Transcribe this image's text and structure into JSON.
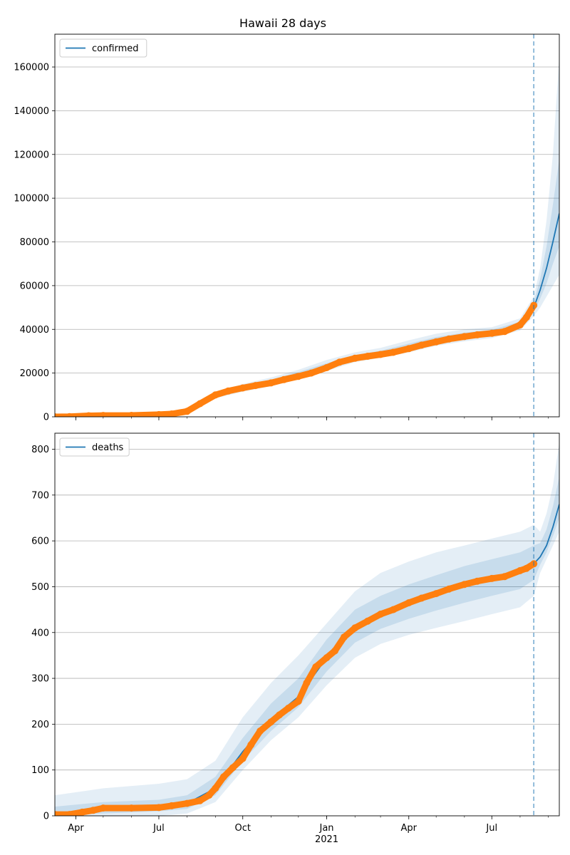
{
  "chart_data": [
    {
      "type": "line",
      "title": "Hawaii 28 days",
      "xlabel": "",
      "ylabel": "",
      "xlim": [
        "2020-03-09",
        "2021-09-13"
      ],
      "ylim": [
        0,
        175000
      ],
      "yticks": [
        0,
        20000,
        40000,
        60000,
        80000,
        100000,
        120000,
        140000,
        160000
      ],
      "grid": "y",
      "legend": {
        "position": "top-left",
        "entries": [
          "confirmed"
        ]
      },
      "forecast_start": "2021-08-16",
      "series": [
        {
          "name": "confirmed",
          "role": "model fit and forecast",
          "color": "#1f77b4",
          "x": [
            "2020-03-09",
            "2020-07-01",
            "2020-08-01",
            "2020-09-01",
            "2020-10-01",
            "2020-11-01",
            "2020-12-01",
            "2021-01-01",
            "2021-02-01",
            "2021-03-01",
            "2021-04-01",
            "2021-05-01",
            "2021-06-01",
            "2021-07-01",
            "2021-08-01",
            "2021-08-16",
            "2021-08-23",
            "2021-08-30",
            "2021-09-06",
            "2021-09-13"
          ],
          "y": [
            0,
            1000,
            2500,
            10000,
            13000,
            16000,
            19500,
            23000,
            27000,
            29000,
            32000,
            35000,
            37000,
            38500,
            42000,
            50000,
            58000,
            68000,
            80000,
            93000
          ],
          "bands": [
            {
              "x": [
                "2020-03-09",
                "2020-07-01",
                "2020-08-01",
                "2020-09-01",
                "2020-10-01",
                "2020-11-01",
                "2020-12-01",
                "2021-01-01",
                "2021-02-01",
                "2021-03-01",
                "2021-04-01",
                "2021-05-01",
                "2021-06-01",
                "2021-07-01",
                "2021-08-01",
                "2021-08-16",
                "2021-08-23",
                "2021-08-30",
                "2021-09-06",
                "2021-09-13"
              ],
              "lower": [
                0,
                800,
                2000,
                8500,
                11500,
                14000,
                17500,
                21000,
                25000,
                27000,
                29500,
                32500,
                34500,
                36000,
                39500,
                46000,
                50000,
                55000,
                60000,
                65000
              ],
              "upper": [
                1000,
                1200,
                3000,
                11500,
                15000,
                18000,
                21500,
                26000,
                29500,
                31500,
                35000,
                38000,
                40000,
                41000,
                45000,
                55000,
                68000,
                90000,
                120000,
                165000
              ]
            },
            {
              "x": [
                "2020-03-09",
                "2020-07-01",
                "2020-08-01",
                "2020-09-01",
                "2020-10-01",
                "2020-11-01",
                "2020-12-01",
                "2021-01-01",
                "2021-02-01",
                "2021-03-01",
                "2021-04-01",
                "2021-05-01",
                "2021-06-01",
                "2021-07-01",
                "2021-08-01",
                "2021-08-16",
                "2021-08-23",
                "2021-08-30",
                "2021-09-06",
                "2021-09-13"
              ],
              "lower": [
                0,
                900,
                2200,
                9200,
                12200,
                15000,
                18500,
                22000,
                26000,
                28000,
                30800,
                33800,
                35800,
                37300,
                40800,
                48000,
                54000,
                61000,
                70000,
                78000
              ],
              "upper": [
                500,
                1100,
                2800,
                10800,
                14000,
                17000,
                20500,
                24500,
                28200,
                30200,
                33500,
                36500,
                38500,
                39800,
                43500,
                52500,
                63000,
                78000,
                97000,
                118000
              ]
            }
          ]
        },
        {
          "name": "observed",
          "role": "observed data points",
          "color": "#ff7f0e",
          "x": [
            "2020-03-09",
            "2020-03-25",
            "2020-04-15",
            "2020-05-01",
            "2020-06-01",
            "2020-07-01",
            "2020-07-15",
            "2020-08-01",
            "2020-08-15",
            "2020-09-01",
            "2020-09-15",
            "2020-10-01",
            "2020-10-15",
            "2020-11-01",
            "2020-11-15",
            "2020-12-01",
            "2020-12-15",
            "2021-01-01",
            "2021-01-15",
            "2021-02-01",
            "2021-02-15",
            "2021-03-01",
            "2021-03-15",
            "2021-04-01",
            "2021-04-15",
            "2021-05-01",
            "2021-05-15",
            "2021-06-01",
            "2021-06-15",
            "2021-07-01",
            "2021-07-15",
            "2021-08-01",
            "2021-08-08",
            "2021-08-16"
          ],
          "y": [
            0,
            100,
            500,
            620,
            650,
            1000,
            1300,
            2500,
            6000,
            10000,
            11800,
            13200,
            14300,
            15500,
            17000,
            18500,
            20000,
            22500,
            25000,
            26800,
            27700,
            28500,
            29500,
            31200,
            32800,
            34300,
            35600,
            36700,
            37500,
            38200,
            39000,
            42000,
            45500,
            51000
          ]
        }
      ]
    },
    {
      "type": "line",
      "title": "",
      "xlabel": "",
      "ylabel": "",
      "xlim": [
        "2020-03-09",
        "2021-09-13"
      ],
      "ylim": [
        0,
        835
      ],
      "yticks": [
        0,
        100,
        200,
        300,
        400,
        500,
        600,
        700,
        800
      ],
      "xticks": [
        {
          "date": "2020-04-01",
          "label": "Apr"
        },
        {
          "date": "2020-07-01",
          "label": "Jul"
        },
        {
          "date": "2020-10-01",
          "label": "Oct"
        },
        {
          "date": "2021-01-01",
          "label": "Jan",
          "sublabel": "2021"
        },
        {
          "date": "2021-04-01",
          "label": "Apr"
        },
        {
          "date": "2021-07-01",
          "label": "Jul"
        }
      ],
      "grid": "y",
      "legend": {
        "position": "top-left",
        "entries": [
          "deaths"
        ]
      },
      "forecast_start": "2021-08-16",
      "series": [
        {
          "name": "deaths",
          "role": "model fit and forecast",
          "color": "#1f77b4",
          "x": [
            "2020-03-09",
            "2020-05-01",
            "2020-07-01",
            "2020-08-01",
            "2020-09-01",
            "2020-10-01",
            "2020-11-01",
            "2020-12-01",
            "2021-01-01",
            "2021-02-01",
            "2021-03-01",
            "2021-04-01",
            "2021-05-01",
            "2021-06-01",
            "2021-07-01",
            "2021-08-01",
            "2021-08-16",
            "2021-08-23",
            "2021-08-30",
            "2021-09-06",
            "2021-09-13"
          ],
          "y": [
            3,
            15,
            20,
            27,
            60,
            140,
            210,
            260,
            345,
            410,
            440,
            465,
            485,
            505,
            520,
            535,
            550,
            565,
            590,
            630,
            680
          ],
          "bands": [
            {
              "x": [
                "2020-03-09",
                "2020-05-01",
                "2020-07-01",
                "2020-08-01",
                "2020-09-01",
                "2020-10-01",
                "2020-11-01",
                "2020-12-01",
                "2021-01-01",
                "2021-02-01",
                "2021-03-01",
                "2021-04-01",
                "2021-05-01",
                "2021-06-01",
                "2021-07-01",
                "2021-08-01",
                "2021-08-16",
                "2021-08-23",
                "2021-08-30",
                "2021-09-06",
                "2021-09-13"
              ],
              "lower": [
                0,
                0,
                0,
                5,
                30,
                100,
                165,
                215,
                285,
                345,
                375,
                395,
                410,
                425,
                440,
                455,
                480,
                530,
                560,
                590,
                620
              ],
              "upper": [
                45,
                60,
                70,
                80,
                120,
                215,
                290,
                350,
                420,
                490,
                530,
                555,
                575,
                590,
                605,
                620,
                635,
                620,
                660,
                720,
                815
              ]
            },
            {
              "x": [
                "2020-03-09",
                "2020-05-01",
                "2020-07-01",
                "2020-08-01",
                "2020-09-01",
                "2020-10-01",
                "2020-11-01",
                "2020-12-01",
                "2021-01-01",
                "2021-02-01",
                "2021-03-01",
                "2021-04-01",
                "2021-05-01",
                "2021-06-01",
                "2021-07-01",
                "2021-08-01",
                "2021-08-16",
                "2021-08-23",
                "2021-08-30",
                "2021-09-06",
                "2021-09-13"
              ],
              "lower": [
                0,
                5,
                10,
                15,
                45,
                120,
                185,
                237,
                315,
                378,
                408,
                430,
                448,
                465,
                480,
                495,
                515,
                548,
                575,
                610,
                650
              ],
              "upper": [
                20,
                30,
                35,
                45,
                85,
                170,
                245,
                300,
                385,
                450,
                480,
                505,
                525,
                545,
                560,
                575,
                590,
                595,
                625,
                675,
                740
              ]
            }
          ]
        },
        {
          "name": "observed",
          "role": "observed data points",
          "color": "#ff7f0e",
          "x": [
            "2020-03-09",
            "2020-03-25",
            "2020-04-08",
            "2020-04-20",
            "2020-05-01",
            "2020-06-01",
            "2020-07-01",
            "2020-07-15",
            "2020-08-01",
            "2020-08-15",
            "2020-08-25",
            "2020-09-01",
            "2020-09-10",
            "2020-09-20",
            "2020-10-01",
            "2020-10-10",
            "2020-10-20",
            "2020-11-01",
            "2020-11-10",
            "2020-11-20",
            "2020-12-01",
            "2020-12-10",
            "2020-12-20",
            "2021-01-01",
            "2021-01-10",
            "2021-01-20",
            "2021-02-01",
            "2021-02-15",
            "2021-03-01",
            "2021-03-15",
            "2021-04-01",
            "2021-04-15",
            "2021-05-01",
            "2021-05-15",
            "2021-06-01",
            "2021-06-15",
            "2021-07-01",
            "2021-07-15",
            "2021-08-01",
            "2021-08-08",
            "2021-08-16"
          ],
          "y": [
            3,
            3,
            8,
            12,
            17,
            17,
            18,
            22,
            27,
            33,
            45,
            60,
            85,
            105,
            125,
            155,
            185,
            205,
            220,
            235,
            250,
            290,
            325,
            345,
            360,
            390,
            410,
            425,
            440,
            450,
            465,
            475,
            485,
            495,
            505,
            512,
            518,
            522,
            535,
            540,
            550
          ]
        }
      ]
    }
  ]
}
